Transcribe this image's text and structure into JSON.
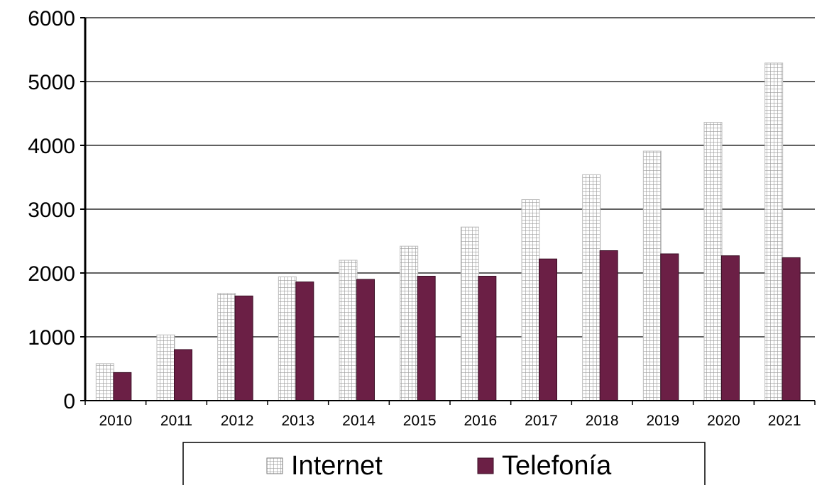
{
  "chart_data": {
    "type": "bar",
    "categories": [
      "2010",
      "2011",
      "2012",
      "2013",
      "2014",
      "2015",
      "2016",
      "2017",
      "2018",
      "2019",
      "2020",
      "2021"
    ],
    "series": [
      {
        "name": "Internet",
        "values": [
          580,
          1030,
          1680,
          1940,
          2200,
          2420,
          2720,
          3150,
          3540,
          3910,
          4360,
          5290
        ],
        "color": "#d6d6d6",
        "pattern": "grid"
      },
      {
        "name": "Telefonía",
        "values": [
          440,
          800,
          1640,
          1860,
          1900,
          1950,
          1950,
          2220,
          2350,
          2300,
          2270,
          2240
        ],
        "color": "#6b1f45"
      }
    ],
    "yticks": [
      0,
      1000,
      2000,
      3000,
      4000,
      5000,
      6000
    ],
    "ylim": [
      0,
      6000
    ],
    "title": "",
    "xlabel": "",
    "ylabel": "",
    "grid": true,
    "legend_position": "bottom"
  }
}
